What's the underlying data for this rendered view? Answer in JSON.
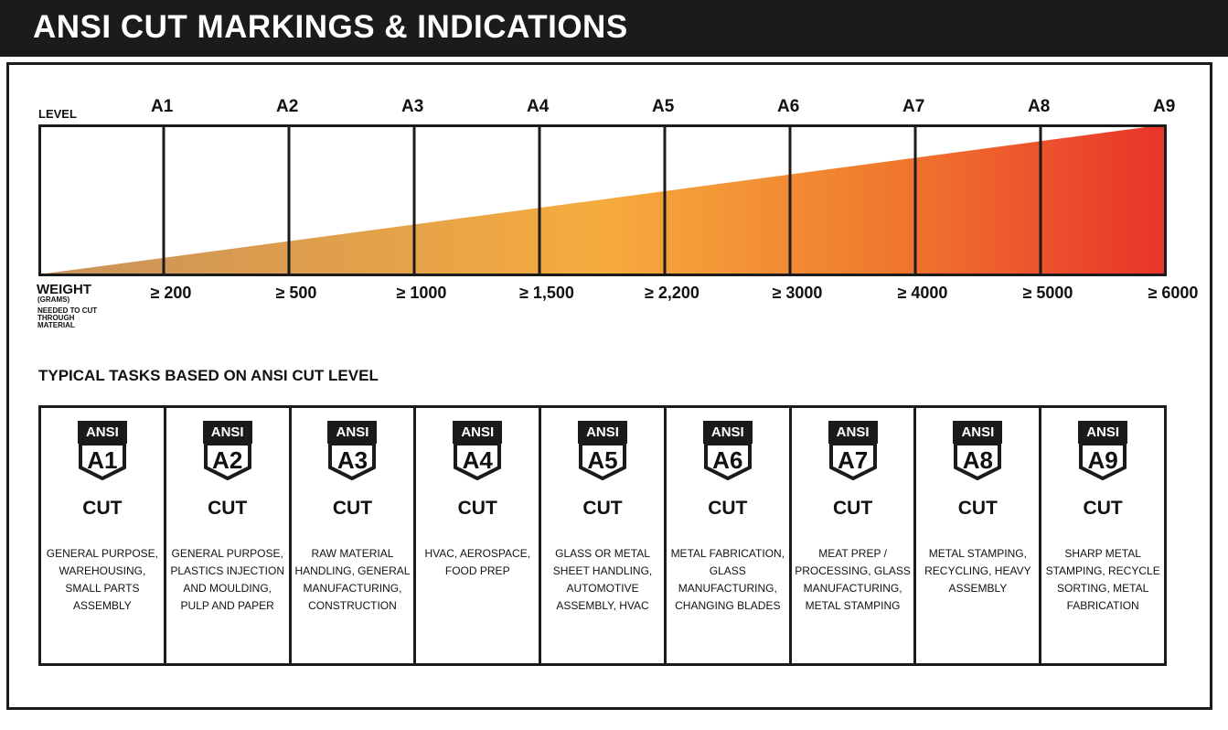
{
  "header": {
    "title": "ANSI CUT MARKINGS & INDICATIONS"
  },
  "scale": {
    "level_label": "LEVEL",
    "levels": [
      "A1",
      "A2",
      "A3",
      "A4",
      "A5",
      "A6",
      "A7",
      "A8",
      "A9"
    ],
    "weight_label": "WEIGHT",
    "weight_unit": "(GRAMS)",
    "weight_note": "NEEDED TO CUT THROUGH MATERIAL",
    "weights": [
      "≥ 200",
      "≥ 500",
      "≥ 1000",
      "≥ 1,500",
      "≥ 2,200",
      "≥ 3000",
      "≥ 4000",
      "≥ 5000",
      "≥ 6000"
    ],
    "gradient_colors": [
      "#c8925a",
      "#f6ab3e",
      "#f07a2e",
      "#e9332a"
    ]
  },
  "tasks": {
    "title": "TYPICAL TASKS BASED ON ANSI CUT LEVEL",
    "badge_top": "ANSI",
    "cut_label": "CUT",
    "items": [
      {
        "code": "A1",
        "desc": "GENERAL PURPOSE, WAREHOUSING, SMALL PARTS ASSEMBLY"
      },
      {
        "code": "A2",
        "desc": "GENERAL PURPOSE, PLASTICS INJECTION AND MOULDING, PULP AND PAPER"
      },
      {
        "code": "A3",
        "desc": "RAW MATERIAL HANDLING, GENERAL MANUFACTURING, CONSTRUCTION"
      },
      {
        "code": "A4",
        "desc": "HVAC, AEROSPACE, FOOD PREP"
      },
      {
        "code": "A5",
        "desc": "GLASS OR METAL SHEET HANDLING, AUTOMOTIVE ASSEMBLY, HVAC"
      },
      {
        "code": "A6",
        "desc": "METAL FABRICATION, GLASS MANUFACTURING, CHANGING BLADES"
      },
      {
        "code": "A7",
        "desc": "MEAT PREP / PROCESSING, GLASS MANUFACTURING, METAL STAMPING"
      },
      {
        "code": "A8",
        "desc": "METAL STAMPING, RECYCLING, HEAVY ASSEMBLY"
      },
      {
        "code": "A9",
        "desc": "SHARP METAL STAMPING, RECYCLE SORTING, METAL FABRICATION"
      }
    ]
  }
}
